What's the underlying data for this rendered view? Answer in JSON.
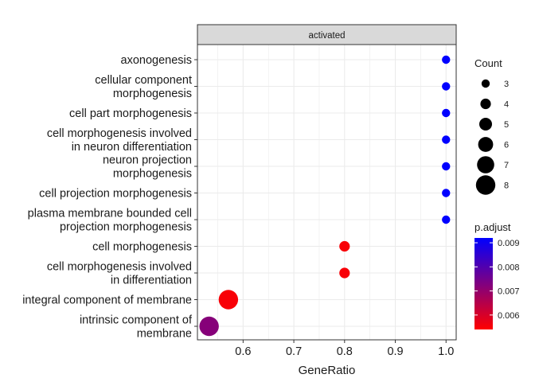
{
  "chart_data": {
    "type": "scatter",
    "facet": "activated",
    "xlabel": "GeneRatio",
    "ylabel": "",
    "xlim": [
      0.51,
      1.02
    ],
    "xticks": [
      "0.6",
      "0.7",
      "0.8",
      "0.9",
      "1.0"
    ],
    "xtick_values": [
      0.6,
      0.7,
      0.8,
      0.9,
      1.0
    ],
    "categories": [
      "axonogenesis",
      "cellular component\nmorphogenesis",
      "cell part morphogenesis",
      "cell morphogenesis involved\nin neuron differentiation",
      "neuron projection\nmorphogenesis",
      "cell projection morphogenesis",
      "plasma membrane bounded cell\nprojection morphogenesis",
      "cell morphogenesis",
      "cell morphogenesis involved\nin differentiation",
      "integral component of membrane",
      "intrinsic component of\nmembrane"
    ],
    "points": [
      {
        "term": "axonogenesis",
        "gene_ratio": 1.0,
        "count": 3,
        "p_adjust": 0.0092
      },
      {
        "term": "cellular component morphogenesis",
        "gene_ratio": 1.0,
        "count": 3,
        "p_adjust": 0.0092
      },
      {
        "term": "cell part morphogenesis",
        "gene_ratio": 1.0,
        "count": 3,
        "p_adjust": 0.0092
      },
      {
        "term": "cell morphogenesis involved in neuron differentiation",
        "gene_ratio": 1.0,
        "count": 3,
        "p_adjust": 0.0092
      },
      {
        "term": "neuron projection morphogenesis",
        "gene_ratio": 1.0,
        "count": 3,
        "p_adjust": 0.0092
      },
      {
        "term": "cell projection morphogenesis",
        "gene_ratio": 1.0,
        "count": 3,
        "p_adjust": 0.0092
      },
      {
        "term": "plasma membrane bounded cell projection morphogenesis",
        "gene_ratio": 1.0,
        "count": 3,
        "p_adjust": 0.0092
      },
      {
        "term": "cell morphogenesis",
        "gene_ratio": 0.8,
        "count": 4,
        "p_adjust": 0.0055
      },
      {
        "term": "cell morphogenesis involved in differentiation",
        "gene_ratio": 0.8,
        "count": 4,
        "p_adjust": 0.0055
      },
      {
        "term": "integral component of membrane",
        "gene_ratio": 0.571,
        "count": 8,
        "p_adjust": 0.0055
      },
      {
        "term": "intrinsic component of membrane",
        "gene_ratio": 0.533,
        "count": 8,
        "p_adjust": 0.0072
      }
    ],
    "size_legend": {
      "title": "Count",
      "values": [
        3,
        4,
        5,
        6,
        7,
        8
      ],
      "labels": [
        "3",
        "4",
        "5",
        "6",
        "7",
        "8"
      ]
    },
    "color_legend": {
      "title": "p.adjust",
      "range": [
        0.0054,
        0.0092
      ],
      "ticks": [
        0.006,
        0.007,
        0.008,
        0.009
      ],
      "tick_labels": [
        "0.006",
        "0.007",
        "0.008",
        "0.009"
      ],
      "low_color": "#ff0000",
      "high_color": "#0000ff"
    },
    "colors": {
      "panel_border": "#333333",
      "grid": "#ebebeb",
      "strip_fill": "#d9d9d9",
      "legend_dot": "#000000"
    }
  }
}
